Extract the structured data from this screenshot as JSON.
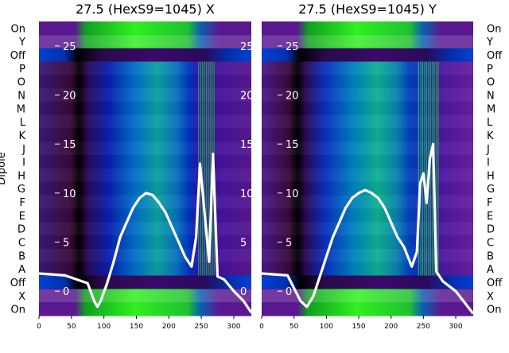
{
  "chart_data": [
    {
      "type": "heatmap",
      "title": "27.5 (HexS9=1045) X",
      "ylabel": "Dipole",
      "xlim": [
        0,
        327
      ],
      "x_ticks": [
        0,
        50,
        100,
        150,
        200,
        250,
        300
      ],
      "rows": [
        "On",
        "Y",
        "Off",
        "P",
        "O",
        "N",
        "M",
        "L",
        "K",
        "J",
        "I",
        "H",
        "G",
        "F",
        "E",
        "D",
        "C",
        "B",
        "A",
        "Off",
        "X",
        "On"
      ],
      "overlay_axis": {
        "ylim": [
          -2.5,
          27.5
        ],
        "ticks": [
          0,
          5,
          10,
          15,
          20,
          25
        ]
      },
      "overlay_lines": [
        {
          "x": [
            0,
            40,
            75,
            85,
            90,
            95,
            105,
            115,
            125,
            135,
            145,
            155,
            165,
            175,
            185,
            195,
            205,
            215,
            225,
            235,
            242,
            248,
            255,
            262,
            268,
            275,
            285,
            300,
            315,
            327
          ],
          "y": [
            1.8,
            1.6,
            0.8,
            -1.0,
            -1.6,
            -1.0,
            0.8,
            3.0,
            5.5,
            7.0,
            8.5,
            9.5,
            10.0,
            9.8,
            9.0,
            8.0,
            6.5,
            5.0,
            3.5,
            2.5,
            5.5,
            13.0,
            8.0,
            3.0,
            14.0,
            1.5,
            1.2,
            0.0,
            -1.0,
            -2.2
          ]
        }
      ]
    },
    {
      "type": "heatmap",
      "title": "27.5 (HexS9=1045) Y",
      "ylabel": "",
      "xlim": [
        0,
        327
      ],
      "x_ticks": [
        0,
        50,
        100,
        150,
        200,
        250,
        300
      ],
      "rows": [
        "On",
        "Y",
        "Off",
        "P",
        "O",
        "N",
        "M",
        "L",
        "K",
        "J",
        "I",
        "H",
        "G",
        "F",
        "E",
        "D",
        "C",
        "B",
        "A",
        "Off",
        "X",
        "On"
      ],
      "overlay_axis": {
        "ylim": [
          -2.5,
          27.5
        ],
        "ticks": [
          0,
          5,
          10,
          15,
          20,
          25
        ]
      },
      "overlay_lines": [
        {
          "x": [
            0,
            40,
            60,
            70,
            80,
            90,
            100,
            110,
            120,
            130,
            140,
            150,
            160,
            170,
            180,
            190,
            200,
            210,
            220,
            232,
            240,
            245,
            250,
            255,
            260,
            265,
            270,
            280,
            300,
            327
          ],
          "y": [
            1.8,
            1.6,
            -1.0,
            -1.6,
            -0.5,
            1.5,
            3.5,
            5.5,
            7.0,
            8.5,
            9.5,
            10.0,
            10.3,
            10.0,
            9.5,
            8.5,
            7.0,
            5.5,
            4.5,
            2.5,
            4.0,
            11.0,
            12.0,
            9.0,
            13.5,
            15.0,
            2.0,
            1.0,
            0.0,
            -2.3
          ]
        }
      ]
    }
  ]
}
